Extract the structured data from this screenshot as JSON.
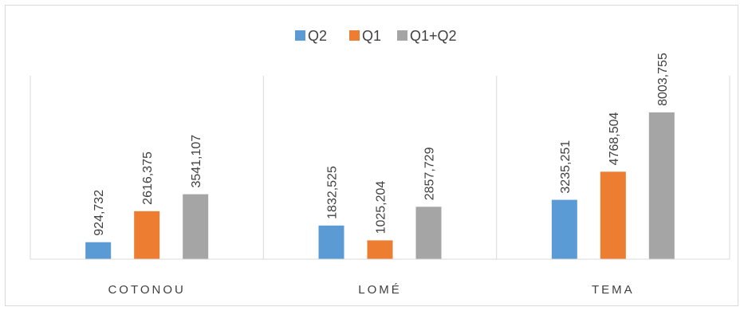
{
  "chart_data": {
    "type": "bar",
    "title": "",
    "xlabel": "",
    "ylabel": "",
    "categories": [
      "COTONOU",
      "LOMÉ",
      "TEMA"
    ],
    "ylim": [
      0,
      10000000
    ],
    "grid": false,
    "legend_position": "top",
    "series": [
      {
        "name": "Q2",
        "color": "#5b9bd5",
        "values": [
          924732,
          1832525,
          3235251
        ],
        "labels": [
          "924,732",
          "1832,525",
          "3235,251"
        ]
      },
      {
        "name": "Q1",
        "color": "#ed7d31",
        "values": [
          2616375,
          1025204,
          4768504
        ],
        "labels": [
          "2616,375",
          "1025,204",
          "4768,504"
        ]
      },
      {
        "name": "Q1+Q2",
        "color": "#a5a5a5",
        "values": [
          3541107,
          2857729,
          8003755
        ],
        "labels": [
          "3541,107",
          "2857,729",
          "8003,755"
        ]
      }
    ]
  }
}
